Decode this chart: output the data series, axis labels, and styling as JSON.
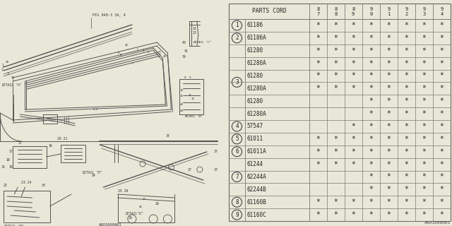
{
  "bg_color": "#e8e8d8",
  "border_color": "#666666",
  "text_color": "#222222",
  "columns_header": "PARTS CORD",
  "year_labels": [
    "87",
    "88",
    "89",
    "90",
    "91",
    "92",
    "93",
    "94"
  ],
  "rows": [
    {
      "ref": "1",
      "part": "61186",
      "marks": [
        1,
        1,
        1,
        1,
        1,
        1,
        1,
        1
      ],
      "show_ref": true,
      "ref_span_start": true,
      "ref_span_end": true
    },
    {
      "ref": "2",
      "part": "61186A",
      "marks": [
        1,
        1,
        1,
        1,
        1,
        1,
        1,
        1
      ],
      "show_ref": true,
      "ref_span_start": true,
      "ref_span_end": true
    },
    {
      "ref": "3",
      "part": "61280",
      "marks": [
        1,
        1,
        1,
        1,
        1,
        1,
        1,
        1
      ],
      "show_ref": false,
      "ref_span_start": true,
      "ref_span_end": false
    },
    {
      "ref": "3",
      "part": "61280A",
      "marks": [
        1,
        1,
        1,
        1,
        1,
        1,
        1,
        1
      ],
      "show_ref": false,
      "ref_span_start": false,
      "ref_span_end": false
    },
    {
      "ref": "3",
      "part": "61280",
      "marks": [
        1,
        1,
        1,
        1,
        1,
        1,
        1,
        1
      ],
      "show_ref": false,
      "ref_span_start": false,
      "ref_span_end": false
    },
    {
      "ref": "3",
      "part": "61280A",
      "marks": [
        1,
        1,
        1,
        1,
        1,
        1,
        1,
        1
      ],
      "show_ref": false,
      "ref_span_start": false,
      "ref_span_end": false
    },
    {
      "ref": "3",
      "part": "61280",
      "marks": [
        0,
        0,
        0,
        1,
        1,
        1,
        1,
        1
      ],
      "show_ref": false,
      "ref_span_start": false,
      "ref_span_end": false
    },
    {
      "ref": "3",
      "part": "61280A",
      "marks": [
        0,
        0,
        0,
        1,
        1,
        1,
        1,
        1
      ],
      "show_ref": false,
      "ref_span_start": false,
      "ref_span_end": true
    },
    {
      "ref": "4",
      "part": "57547",
      "marks": [
        0,
        0,
        1,
        1,
        1,
        1,
        1,
        1
      ],
      "show_ref": true,
      "ref_span_start": true,
      "ref_span_end": true
    },
    {
      "ref": "5",
      "part": "61011",
      "marks": [
        1,
        1,
        1,
        1,
        1,
        1,
        1,
        1
      ],
      "show_ref": true,
      "ref_span_start": true,
      "ref_span_end": true
    },
    {
      "ref": "6",
      "part": "61011A",
      "marks": [
        1,
        1,
        1,
        1,
        1,
        1,
        1,
        1
      ],
      "show_ref": true,
      "ref_span_start": true,
      "ref_span_end": true
    },
    {
      "ref": "7",
      "part": "61244",
      "marks": [
        1,
        1,
        1,
        1,
        1,
        1,
        1,
        1
      ],
      "show_ref": false,
      "ref_span_start": true,
      "ref_span_end": false
    },
    {
      "ref": "7",
      "part": "62244A",
      "marks": [
        0,
        0,
        0,
        1,
        1,
        1,
        1,
        1
      ],
      "show_ref": false,
      "ref_span_start": false,
      "ref_span_end": false
    },
    {
      "ref": "7",
      "part": "62244B",
      "marks": [
        0,
        0,
        0,
        1,
        1,
        1,
        1,
        1
      ],
      "show_ref": false,
      "ref_span_start": false,
      "ref_span_end": true
    },
    {
      "ref": "8",
      "part": "61160B",
      "marks": [
        1,
        1,
        1,
        1,
        1,
        1,
        1,
        1
      ],
      "show_ref": true,
      "ref_span_start": true,
      "ref_span_end": true
    },
    {
      "ref": "9",
      "part": "61160C",
      "marks": [
        1,
        1,
        1,
        1,
        1,
        1,
        1,
        1
      ],
      "show_ref": true,
      "ref_span_start": true,
      "ref_span_end": true
    }
  ],
  "diagram_ref_code": "A601000061",
  "ref_groups": {
    "1": [
      0
    ],
    "2": [
      1
    ],
    "3": [
      2,
      3,
      4,
      5,
      6,
      7
    ],
    "4": [
      8
    ],
    "5": [
      9
    ],
    "6": [
      10
    ],
    "7": [
      11,
      12,
      13
    ],
    "8": [
      14
    ],
    "9": [
      15
    ]
  }
}
